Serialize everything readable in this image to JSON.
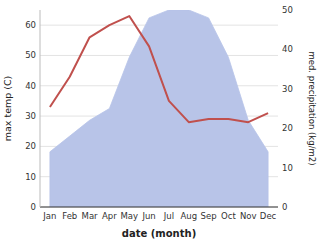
{
  "chart_data": {
    "type": "line",
    "categories": [
      "Jan",
      "Feb",
      "Mar",
      "Apr",
      "May",
      "Jun",
      "Jul",
      "Aug",
      "Sep",
      "Oct",
      "Nov",
      "Dec"
    ],
    "series": [
      {
        "type": "line",
        "color": "#c0504d",
        "values": [
          33,
          43,
          56,
          60,
          63,
          53,
          35,
          28,
          29,
          29,
          28,
          31
        ]
      },
      {
        "type": "area",
        "axis": "y2",
        "color": "#b8c4e8",
        "values": [
          14,
          18,
          22,
          25,
          38,
          48,
          50,
          50,
          48,
          38,
          22,
          14
        ]
      }
    ],
    "x_label": "date (month)",
    "y_label": "max temp (C)",
    "y2_label": "med. precipitation (kg/m2)",
    "ylim": [
      0,
      65
    ],
    "yticks": [
      0,
      10,
      20,
      30,
      40,
      50,
      60
    ],
    "y2lim": [
      0,
      50
    ],
    "y2ticks": [
      0,
      10,
      20,
      30,
      40,
      50
    ],
    "grid": true
  }
}
